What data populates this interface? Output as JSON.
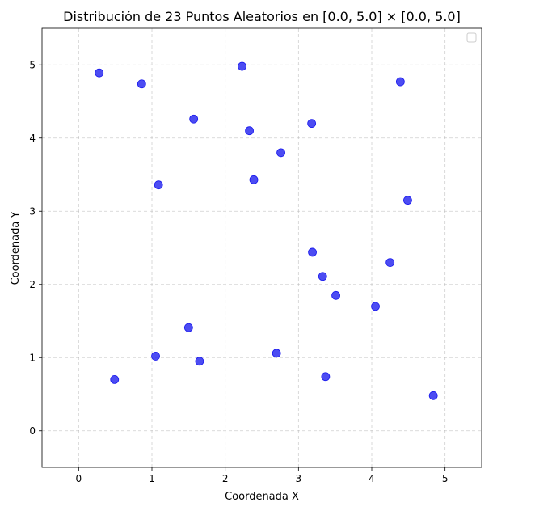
{
  "chart_data": {
    "type": "scatter",
    "title": "Distribución de 23 Puntos Aleatorios en [0.0, 5.0] × [0.0, 5.0]",
    "xlabel": "Coordenada X",
    "ylabel": "Coordenada Y",
    "xlim": [
      -0.5,
      5.5
    ],
    "ylim": [
      -0.5,
      5.5
    ],
    "xticks": [
      0,
      1,
      2,
      3,
      4,
      5
    ],
    "yticks": [
      0,
      1,
      2,
      3,
      4,
      5
    ],
    "grid": true,
    "legend": "top-right",
    "series": [
      {
        "color": "#1a1aee",
        "points": [
          {
            "x": 0.28,
            "y": 4.89
          },
          {
            "x": 0.86,
            "y": 4.74
          },
          {
            "x": 2.23,
            "y": 4.98
          },
          {
            "x": 4.39,
            "y": 4.77
          },
          {
            "x": 1.57,
            "y": 4.26
          },
          {
            "x": 2.33,
            "y": 4.1
          },
          {
            "x": 3.18,
            "y": 4.2
          },
          {
            "x": 2.76,
            "y": 3.8
          },
          {
            "x": 1.09,
            "y": 3.36
          },
          {
            "x": 2.39,
            "y": 3.43
          },
          {
            "x": 4.49,
            "y": 3.15
          },
          {
            "x": 3.19,
            "y": 2.44
          },
          {
            "x": 4.25,
            "y": 2.3
          },
          {
            "x": 3.33,
            "y": 2.11
          },
          {
            "x": 3.51,
            "y": 1.85
          },
          {
            "x": 4.05,
            "y": 1.7
          },
          {
            "x": 1.5,
            "y": 1.41
          },
          {
            "x": 1.05,
            "y": 1.02
          },
          {
            "x": 1.65,
            "y": 0.95
          },
          {
            "x": 2.7,
            "y": 1.06
          },
          {
            "x": 0.49,
            "y": 0.7
          },
          {
            "x": 3.37,
            "y": 0.74
          },
          {
            "x": 4.84,
            "y": 0.48
          }
        ]
      }
    ]
  }
}
